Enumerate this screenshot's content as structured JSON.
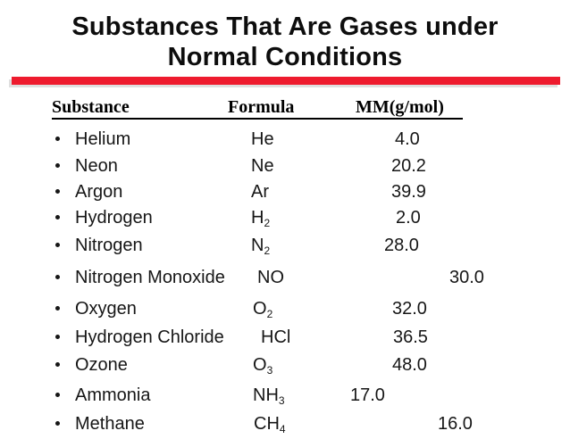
{
  "slide": {
    "title_line1": "Substances That Are Gases under",
    "title_line2": "Normal Conditions"
  },
  "colors": {
    "accent_red": "#ee1b2e",
    "text": "#111111",
    "background": "#ffffff"
  },
  "table": {
    "columns": [
      "Substance",
      "Formula",
      "MM(g/mol)"
    ],
    "rows": [
      {
        "substance": "Helium",
        "formula_base": "He",
        "formula_sub": "",
        "mm": "4.0"
      },
      {
        "substance": "Neon",
        "formula_base": "Ne",
        "formula_sub": "",
        "mm": "20.2"
      },
      {
        "substance": "Argon",
        "formula_base": "Ar",
        "formula_sub": "",
        "mm": "39.9"
      },
      {
        "substance": "Hydrogen",
        "formula_base": "H",
        "formula_sub": "2",
        "mm": "2.0"
      },
      {
        "substance": "Nitrogen",
        "formula_base": "N",
        "formula_sub": "2",
        "mm": "28.0"
      },
      {
        "substance": "Nitrogen Monoxide",
        "formula_base": "NO",
        "formula_sub": "",
        "mm": "30.0"
      },
      {
        "substance": "Oxygen",
        "formula_base": "O",
        "formula_sub": "2",
        "mm": "32.0"
      },
      {
        "substance": "Hydrogen Chloride",
        "formula_base": "HCl",
        "formula_sub": "",
        "mm": "36.5"
      },
      {
        "substance": "Ozone",
        "formula_base": "O",
        "formula_sub": "3",
        "mm": "48.0"
      },
      {
        "substance": "Ammonia",
        "formula_base": "NH",
        "formula_sub": "3",
        "mm": "17.0"
      },
      {
        "substance": "Methane",
        "formula_base": "CH",
        "formula_sub": "4",
        "mm": "16.0"
      }
    ]
  }
}
